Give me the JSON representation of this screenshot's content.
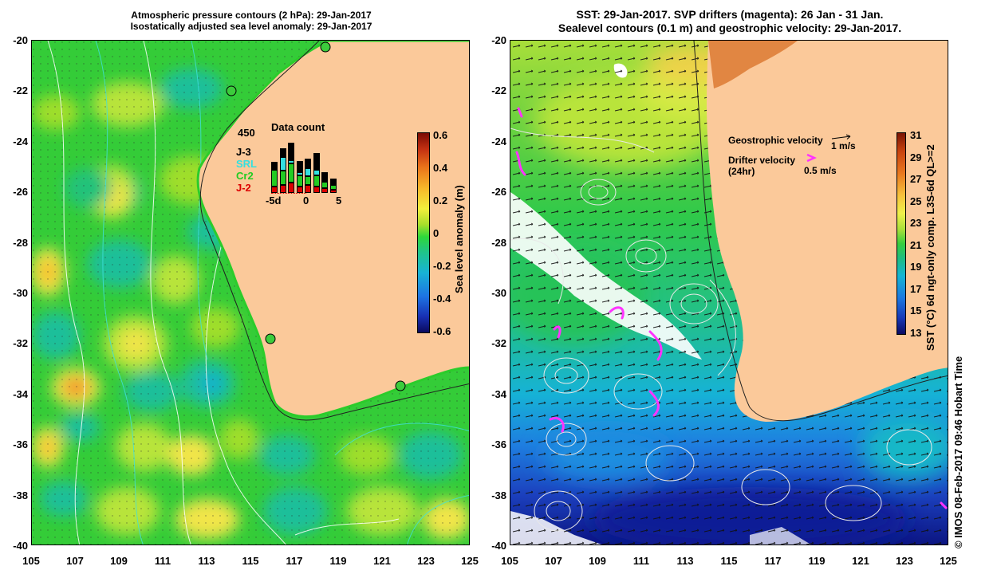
{
  "left_panel": {
    "title_line1": "Atmospheric pressure contours (2 hPa): 29-Jan-2017",
    "title_line2": "Isostatically adjusted sea level anomaly: 29-Jan-2017",
    "y_ticks": [
      "-20",
      "-22",
      "-24",
      "-26",
      "-28",
      "-30",
      "-32",
      "-34",
      "-36",
      "-38",
      "-40"
    ],
    "x_ticks": [
      "105",
      "107",
      "109",
      "111",
      "113",
      "115",
      "117",
      "119",
      "121",
      "123",
      "125"
    ],
    "colorbar": {
      "label": "Sea level anomaly (m)",
      "ticks": [
        "0.6",
        "0.4",
        "0.2",
        "0",
        "-0.2",
        "-0.4",
        "-0.6"
      ]
    },
    "data_count": {
      "title": "Data count",
      "max_label": "450",
      "missions": [
        {
          "name": "J-3",
          "color": "#000000"
        },
        {
          "name": "SRL",
          "color": "#33e0e0"
        },
        {
          "name": "Cr2",
          "color": "#22cc22"
        },
        {
          "name": "J-2",
          "color": "#dd0000"
        }
      ],
      "x_labels": [
        "-5d",
        "0",
        "5"
      ],
      "bars": [
        {
          "J-2": 0.12,
          "Cr2": 0.3,
          "SRL": 0.0,
          "J-3": 0.14
        },
        {
          "J-2": 0.15,
          "Cr2": 0.25,
          "SRL": 0.25,
          "J-3": 0.15
        },
        {
          "J-2": 0.18,
          "Cr2": 0.35,
          "SRL": 0.05,
          "J-3": 0.32
        },
        {
          "J-2": 0.12,
          "Cr2": 0.2,
          "SRL": 0.05,
          "J-3": 0.2
        },
        {
          "J-2": 0.15,
          "Cr2": 0.15,
          "SRL": 0.15,
          "J-3": 0.16
        },
        {
          "J-2": 0.12,
          "Cr2": 0.2,
          "SRL": 0.1,
          "J-3": 0.3
        },
        {
          "J-2": 0.08,
          "Cr2": 0.12,
          "SRL": 0.02,
          "J-3": 0.14
        },
        {
          "J-2": 0.06,
          "Cr2": 0.08,
          "SRL": 0.0,
          "J-3": 0.12
        }
      ]
    }
  },
  "right_panel": {
    "title_line1": "SST: 29-Jan-2017. SVP drifters (magenta): 26 Jan - 31 Jan.",
    "title_line2": "Sealevel contours (0.1 m) and geostrophic velocity: 29-Jan-2017.",
    "y_ticks": [
      "-20",
      "-22",
      "-24",
      "-26",
      "-28",
      "-30",
      "-32",
      "-34",
      "-36",
      "-38",
      "-40"
    ],
    "x_ticks": [
      "105",
      "107",
      "109",
      "111",
      "113",
      "115",
      "117",
      "119",
      "121",
      "123",
      "125"
    ],
    "colorbar": {
      "label": "SST (°C) 6d ngt-only comp. L3S-6d QL>=2",
      "ticks": [
        "31",
        "29",
        "27",
        "25",
        "23",
        "21",
        "19",
        "17",
        "15",
        "13"
      ]
    },
    "legend": {
      "geo_label": "Geostrophic velocity",
      "geo_speed": "1 m/s",
      "drifter_label": "Drifter velocity",
      "drifter_label2": "(24hr)",
      "drifter_speed": "0.5 m/s"
    }
  },
  "credit": "© IMOS 08-Feb-2017 09:46 Hobart Time"
}
